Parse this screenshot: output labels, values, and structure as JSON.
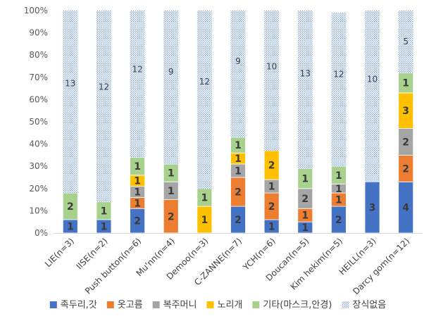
{
  "chart_data": {
    "type": "bar",
    "stacked": true,
    "percent": true,
    "title": "",
    "xlabel": "",
    "ylabel": "",
    "ylim": [
      0,
      100
    ],
    "y_ticks": [
      "0%",
      "10%",
      "20%",
      "30%",
      "40%",
      "50%",
      "60%",
      "70%",
      "80%",
      "90%",
      "100%"
    ],
    "grid": false,
    "legend_position": "bottom",
    "categories": [
      "LIE(n=3)",
      "IISE(n=2)",
      "Push button(n=6)",
      "Mu'nn(n=4)",
      "Demoo(n=3)",
      "C-ZANNE(n=7)",
      "YCH(n=6)",
      "Doucan(n=5)",
      "Kim hekim(n=5)",
      "HEILL(n=3)",
      "Darcy gom(n=12)"
    ],
    "series": [
      {
        "name": "족두리,갓",
        "color": "#4472C4",
        "pattern": "solid",
        "values": [
          6,
          6,
          11,
          0,
          0,
          12,
          6,
          5,
          12,
          23,
          23
        ],
        "labels": [
          "1",
          "1",
          "2",
          "",
          "",
          "2",
          "1",
          "1",
          "2",
          "3",
          "4"
        ]
      },
      {
        "name": "옷고름",
        "color": "#ED7D31",
        "pattern": "solid",
        "values": [
          0,
          0,
          5,
          15,
          0,
          13,
          12,
          6,
          6,
          0,
          12
        ],
        "labels": [
          "",
          "",
          "1",
          "2",
          "",
          "2",
          "2",
          "1",
          "1",
          "",
          "2"
        ]
      },
      {
        "name": "복주머니",
        "color": "#A5A5A5",
        "pattern": "solid",
        "values": [
          0,
          0,
          5,
          8,
          0,
          6,
          6,
          9,
          4,
          0,
          12
        ],
        "labels": [
          "",
          "",
          "1",
          "1",
          "",
          "1",
          "1",
          "2",
          "1",
          "",
          "2"
        ]
      },
      {
        "name": "노리개",
        "color": "#FFC000",
        "pattern": "solid",
        "values": [
          0,
          0,
          5,
          0,
          12,
          5,
          13,
          0,
          0,
          0,
          16
        ],
        "labels": [
          "",
          "",
          "1",
          "",
          "1",
          "1",
          "2",
          "",
          "",
          "",
          "3"
        ]
      },
      {
        "name": "기타(마스크,안경)",
        "color": "#A9D18E",
        "pattern": "solid",
        "values": [
          12,
          8,
          8,
          8,
          8,
          7,
          0,
          9,
          8,
          0,
          9
        ],
        "labels": [
          "2",
          "1",
          "1",
          "1",
          "1",
          "1",
          "",
          "1",
          "1",
          "",
          "1"
        ]
      },
      {
        "name": "장식없음",
        "color": "#9DC3E6",
        "pattern": "dotted",
        "values": [
          82,
          86,
          66,
          69,
          80,
          57,
          63,
          71,
          69,
          77,
          28
        ],
        "labels": [
          "13",
          "12",
          "12",
          "9",
          "12",
          "9",
          "10",
          "13",
          "12",
          "10",
          "5"
        ]
      }
    ]
  }
}
